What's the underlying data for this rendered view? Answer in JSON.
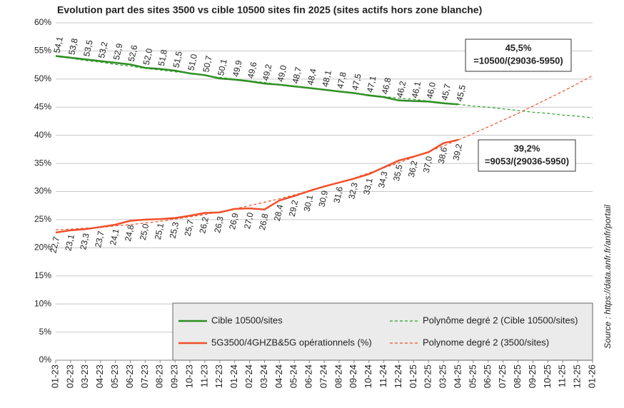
{
  "chart_data": {
    "type": "line",
    "title": "Evolution part des sites 3500 vs cible 10500 sites fin 2025 (sites actifs hors zone blanche)",
    "categories": [
      "01-23",
      "02-23",
      "03-23",
      "04-23",
      "05-23",
      "06-23",
      "07-23",
      "08-23",
      "09-23",
      "10-23",
      "11-23",
      "12-23",
      "01-24",
      "02-24",
      "03-24",
      "04-24",
      "05-24",
      "06-24",
      "07-24",
      "08-24",
      "09-24",
      "10-24",
      "11-24",
      "12-24",
      "01-25",
      "02-25",
      "03-25",
      "04-25",
      "05-25",
      "06-25",
      "07-25",
      "08-25",
      "09-25",
      "10-25",
      "11-25",
      "12-25",
      "01-26"
    ],
    "series": [
      {
        "name": "Cible 10500/sites",
        "color": "#2e8b22",
        "label_color": "#2f9e2a",
        "dashed": false,
        "label_side": "above",
        "values": [
          54.1,
          53.8,
          53.5,
          53.2,
          52.9,
          52.6,
          52.0,
          51.8,
          51.5,
          51.0,
          50.7,
          50.1,
          49.9,
          49.6,
          49.2,
          49.0,
          48.7,
          48.4,
          48.1,
          47.8,
          47.5,
          47.1,
          46.8,
          46.2,
          46.1,
          46.0,
          45.7,
          45.5,
          null,
          null,
          null,
          null,
          null,
          null,
          null,
          null,
          null
        ],
        "value_labels": [
          "54,1",
          "53,8",
          "53,5",
          "53,2",
          "52,9",
          "52,6",
          "52,0",
          "51,8",
          "51,5",
          "51,0",
          "50,7",
          "50,1",
          "49,9",
          "49,6",
          "49,2",
          "49,0",
          "48,7",
          "48,4",
          "48,1",
          "47,8",
          "47,5",
          "47,1",
          "46,8",
          "46,2",
          "46,1",
          "46,0",
          "45,7",
          "45,5",
          null,
          null,
          null,
          null,
          null,
          null,
          null,
          null,
          null
        ]
      },
      {
        "name": "Polynôme degré 2 (Cible 10500/sites)",
        "color": "#2e9e2a",
        "dashed": true,
        "values": [
          54.0,
          53.7,
          53.3,
          53.0,
          52.6,
          52.3,
          51.9,
          51.6,
          51.3,
          51.0,
          50.6,
          50.3,
          50.0,
          49.7,
          49.4,
          49.0,
          48.7,
          48.4,
          48.1,
          47.8,
          47.5,
          47.2,
          46.9,
          46.6,
          46.4,
          46.1,
          45.8,
          45.5,
          45.2,
          45.0,
          44.7,
          44.4,
          44.1,
          43.9,
          43.6,
          43.4,
          43.1
        ]
      },
      {
        "name": "5G3500/4GHZB&5G opérationnels (%)",
        "color": "#f0502a",
        "label_color": "#e0201b",
        "dashed": false,
        "label_side": "below",
        "values": [
          22.7,
          23.1,
          23.3,
          23.7,
          24.1,
          24.8,
          25.0,
          25.1,
          25.3,
          25.7,
          26.2,
          26.3,
          26.9,
          27.0,
          26.8,
          28.4,
          29.2,
          30.1,
          30.9,
          31.6,
          32.3,
          33.1,
          34.3,
          35.5,
          36.2,
          37.0,
          38.6,
          39.2,
          null,
          null,
          null,
          null,
          null,
          null,
          null,
          null,
          null
        ],
        "value_labels": [
          "22,7",
          "23,1",
          "23,3",
          "23,7",
          "24,1",
          "24,8",
          "25,0",
          "25,1",
          "25,3",
          "25,7",
          "26,2",
          "26,3",
          "26,9",
          "27,0",
          "26,8",
          "28,4",
          "29,2",
          "30,1",
          "30,9",
          "31,6",
          "32,3",
          "33,1",
          "34,3",
          "35,5",
          "36,2",
          "37,0",
          "38,6",
          "39,2",
          null,
          null,
          null,
          null,
          null,
          null,
          null,
          null,
          null
        ]
      },
      {
        "name": "Polynome degré 2 (3500/sites)",
        "color": "#f0502a",
        "dashed": true,
        "values": [
          23.2,
          23.3,
          23.5,
          23.6,
          23.9,
          24.1,
          24.4,
          24.7,
          25.1,
          25.5,
          25.9,
          26.4,
          26.9,
          27.5,
          28.1,
          28.7,
          29.4,
          30.1,
          30.8,
          31.6,
          32.4,
          33.3,
          34.2,
          35.1,
          36.1,
          37.1,
          38.1,
          39.2,
          40.3,
          41.5,
          42.7,
          43.9,
          45.2,
          46.5,
          47.8,
          49.2,
          50.6
        ]
      }
    ],
    "ylim": [
      0,
      60
    ],
    "yticks": [
      {
        "value": 0,
        "label": "0%"
      },
      {
        "value": 5,
        "label": "5%"
      },
      {
        "value": 10,
        "label": "10%"
      },
      {
        "value": 15,
        "label": "15%"
      },
      {
        "value": 20,
        "label": "20%"
      },
      {
        "value": 25,
        "label": "25%"
      },
      {
        "value": 30,
        "label": "30%"
      },
      {
        "value": 35,
        "label": "35%"
      },
      {
        "value": 40,
        "label": "40%"
      },
      {
        "value": 45,
        "label": "45%"
      },
      {
        "value": 50,
        "label": "50%"
      },
      {
        "value": 55,
        "label": "55%"
      },
      {
        "value": 60,
        "label": "60%"
      }
    ],
    "grid": true,
    "legend": "bottom-right",
    "annotations": [
      {
        "lines": [
          "45,5%",
          "=10500/(29036-5950)"
        ],
        "color": "#2f9e2a"
      },
      {
        "lines": [
          "39,2%",
          "=9053/(29036-5950)"
        ],
        "color": "#e0201b"
      }
    ],
    "source": "Source : https://data.anfr.fr/anfr/portail"
  }
}
